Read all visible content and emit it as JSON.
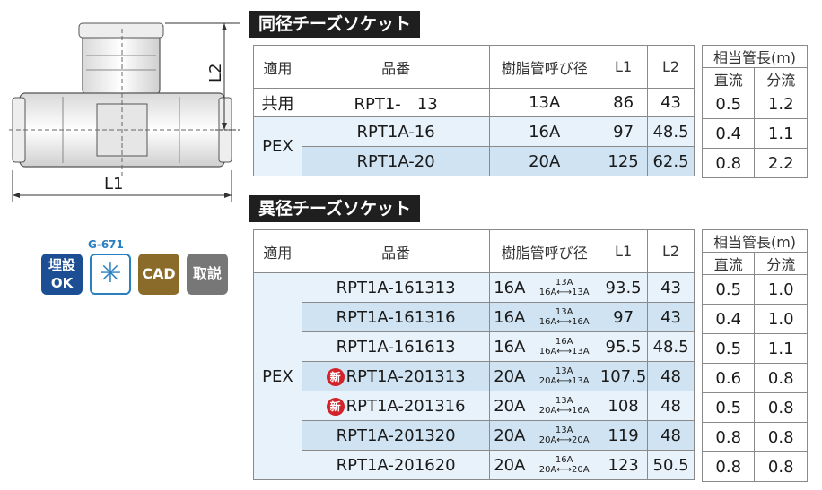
{
  "colors": {
    "header_fill": "#1f1f1f",
    "row_blue": "#cfe3f2",
    "row_light": "#e8f2fa",
    "new_badge": "#d2232a",
    "badge_blue": "#1c4e94",
    "badge_gold": "#8a6b2a",
    "badge_gray": "#777777"
  },
  "diagram": {
    "l1_label": "L1",
    "l2_label": "L2"
  },
  "badges": {
    "burial_line1": "埋設",
    "burial_line2": "OK",
    "g_code": "G-671",
    "cad": "CAD",
    "manual": "取説"
  },
  "section1": {
    "title": "同径チーズソケット",
    "headers": {
      "usage": "適用",
      "part": "品番",
      "pipe": "樹脂管呼び径",
      "l1": "L1",
      "l2": "L2"
    },
    "side_header": "相当管長(m)",
    "side_sub": [
      "直流",
      "分流"
    ],
    "rows": [
      {
        "usage": "共用",
        "part": "RPT1-　13",
        "pipe": "13A",
        "l1": "86",
        "l2": "43",
        "straight": "0.5",
        "branch": "1.2"
      },
      {
        "usage": "PEX",
        "part": "RPT1A-16",
        "pipe": "16A",
        "l1": "97",
        "l2": "48.5",
        "straight": "0.4",
        "branch": "1.1"
      },
      {
        "usage": "",
        "part": "RPT1A-20",
        "pipe": "20A",
        "l1": "125",
        "l2": "62.5",
        "straight": "0.8",
        "branch": "2.2"
      }
    ]
  },
  "section2": {
    "title": "異径チーズソケット",
    "headers": {
      "usage": "適用",
      "part": "品番",
      "pipe": "樹脂管呼び径",
      "l1": "L1",
      "l2": "L2"
    },
    "side_header": "相当管長(m)",
    "side_sub": [
      "直流",
      "分流"
    ],
    "usage": "PEX",
    "new_mark": "新",
    "rows": [
      {
        "new": false,
        "part": "RPT1A-161313",
        "pipe": "16A",
        "top": "13A",
        "bottom": "16A←→13A",
        "l1": "93.5",
        "l2": "43",
        "straight": "0.5",
        "branch": "1.0"
      },
      {
        "new": false,
        "part": "RPT1A-161316",
        "pipe": "16A",
        "top": "13A",
        "bottom": "16A←→16A",
        "l1": "97",
        "l2": "43",
        "straight": "0.4",
        "branch": "1.0"
      },
      {
        "new": false,
        "part": "RPT1A-161613",
        "pipe": "16A",
        "top": "16A",
        "bottom": "16A←→13A",
        "l1": "95.5",
        "l2": "48.5",
        "straight": "0.5",
        "branch": "1.1"
      },
      {
        "new": true,
        "part": "RPT1A-201313",
        "pipe": "20A",
        "top": "13A",
        "bottom": "20A←→13A",
        "l1": "107.5",
        "l2": "48",
        "straight": "0.6",
        "branch": "0.8"
      },
      {
        "new": true,
        "part": "RPT1A-201316",
        "pipe": "20A",
        "top": "13A",
        "bottom": "20A←→16A",
        "l1": "108",
        "l2": "48",
        "straight": "0.5",
        "branch": "0.8"
      },
      {
        "new": false,
        "part": "RPT1A-201320",
        "pipe": "20A",
        "top": "13A",
        "bottom": "20A←→20A",
        "l1": "119",
        "l2": "48",
        "straight": "0.8",
        "branch": "0.8"
      },
      {
        "new": false,
        "part": "RPT1A-201620",
        "pipe": "20A",
        "top": "16A",
        "bottom": "20A←→20A",
        "l1": "123",
        "l2": "50.5",
        "straight": "0.8",
        "branch": "0.8"
      }
    ]
  }
}
